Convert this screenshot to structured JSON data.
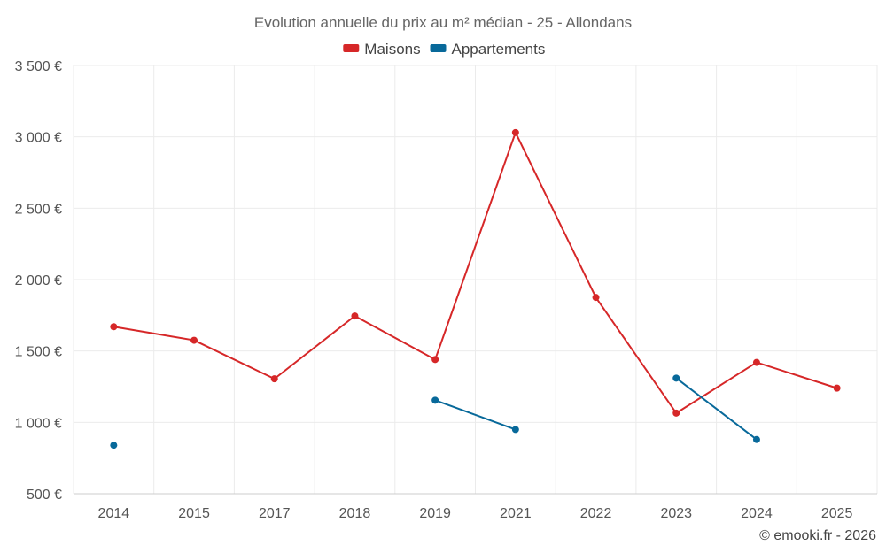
{
  "chart_data": {
    "type": "line",
    "title": "Evolution annuelle du prix au m² médian - 25 - Allondans",
    "categories": [
      "2014",
      "2015",
      "2017",
      "2018",
      "2019",
      "2021",
      "2022",
      "2023",
      "2024",
      "2025"
    ],
    "ylim": [
      500,
      3500
    ],
    "yticks": [
      500,
      1000,
      1500,
      2000,
      2500,
      3000,
      3500
    ],
    "ytick_labels": [
      "500 €",
      "1 000 €",
      "1 500 €",
      "2 000 €",
      "2 500 €",
      "3 000 €",
      "3 500 €"
    ],
    "legend_position": "top-center",
    "series": [
      {
        "name": "Maisons",
        "color": "#d62728",
        "values": [
          1670,
          1575,
          1305,
          1745,
          1440,
          3030,
          1875,
          1065,
          1420,
          1240
        ]
      },
      {
        "name": "Appartements",
        "color": "#08699a",
        "values": [
          840,
          null,
          null,
          null,
          1155,
          950,
          null,
          1310,
          880,
          null
        ]
      }
    ],
    "credit": "© emooki.fr - 2026"
  }
}
